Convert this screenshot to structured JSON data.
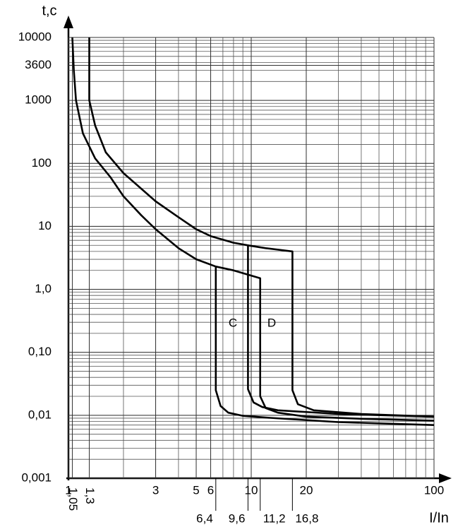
{
  "chart_data": {
    "type": "line",
    "x_label": "I/In",
    "y_label": "t,c",
    "xscale": "log",
    "yscale": "log",
    "grid": true,
    "xlim": [
      1,
      100
    ],
    "ylim": [
      0.001,
      10000
    ],
    "xticks": [
      1,
      {
        "value": 1.05,
        "label": "1,05"
      },
      {
        "value": 1.3,
        "label": "1,3"
      },
      3,
      5,
      6,
      10,
      20,
      100
    ],
    "xticks_secondary": [
      {
        "value": 6.4,
        "label": "6,4"
      },
      {
        "value": 9.6,
        "label": "9,6"
      },
      {
        "value": 11.2,
        "label": "11,2"
      },
      {
        "value": 16.8,
        "label": "16,8"
      }
    ],
    "yticks": [
      {
        "value": 0.001,
        "label": "0,001"
      },
      {
        "value": 0.01,
        "label": "0,01"
      },
      {
        "value": 0.1,
        "label": "0,10"
      },
      {
        "value": 1,
        "label": "1,0"
      },
      10,
      100,
      1000,
      3600,
      10000
    ],
    "annotations": [
      "C",
      "D"
    ],
    "series": [
      {
        "color": "#000000",
        "x": [
          1.3,
          1.3,
          1.4,
          1.6,
          2,
          3,
          4,
          5,
          6,
          8,
          9.6,
          12,
          16.8,
          16.8,
          18,
          22,
          40,
          100
        ],
        "values": [
          10000,
          1000,
          400,
          150,
          70,
          25,
          14,
          9,
          7,
          5.5,
          5,
          4.5,
          4,
          0.025,
          0.015,
          0.012,
          0.0105,
          0.0095
        ]
      },
      {
        "color": "#000000",
        "x": [
          1.05,
          1.07,
          1.1,
          1.2,
          1.4,
          1.7,
          2,
          2.5,
          3,
          4,
          5,
          6.4,
          8,
          11.2,
          11.2,
          12,
          14,
          20,
          40,
          100
        ],
        "values": [
          10000,
          3000,
          1000,
          300,
          120,
          60,
          30,
          15,
          9,
          4.5,
          3,
          2.3,
          2,
          1.5,
          0.02,
          0.013,
          0.011,
          0.0095,
          0.0088,
          0.0082
        ]
      },
      {
        "color": "#000000",
        "x": [
          6.4,
          6.4,
          6.8,
          7.5,
          9,
          12,
          30,
          100
        ],
        "values": [
          2.3,
          0.025,
          0.014,
          0.011,
          0.0098,
          0.0092,
          0.0078,
          0.007
        ]
      },
      {
        "color": "#000000",
        "x": [
          9.6,
          9.6,
          10.3,
          11.5,
          14,
          30,
          100
        ],
        "values": [
          5,
          0.026,
          0.016,
          0.0135,
          0.012,
          0.0105,
          0.0095
        ]
      }
    ]
  }
}
